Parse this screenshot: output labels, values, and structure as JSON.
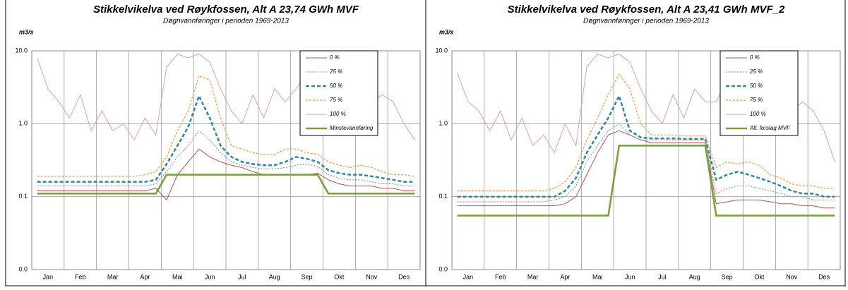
{
  "chart_data": [
    {
      "type": "line",
      "title": "Stikkelvikelva ved Røykfossen, Alt A 23,74 GWh MVF",
      "subtitle": "Døgnvannføringer i perioden 1969-2013",
      "y_label": "m3/s",
      "log_scale": true,
      "grid": true,
      "legend": "top-right",
      "ylim": [
        0.01,
        10
      ],
      "yticks": [
        {
          "value": 0.01,
          "label": "0.0"
        },
        {
          "value": 0.1,
          "label": "0.1"
        },
        {
          "value": 1,
          "label": "1.0"
        },
        {
          "value": 10,
          "label": "10.0"
        }
      ],
      "categories": [
        null,
        "Jan",
        null,
        null,
        "Feb",
        null,
        null,
        "Mar",
        null,
        null,
        "Apr",
        null,
        null,
        "Mai",
        null,
        null,
        "Jun",
        null,
        null,
        "Jul",
        null,
        null,
        "Aug",
        null,
        null,
        "Sep",
        null,
        null,
        "Okt",
        null,
        null,
        "Nov",
        null,
        null,
        "Des",
        null
      ],
      "series": [
        {
          "name": "0 %",
          "color": "#c0504d",
          "style": "thin",
          "values": [
            0.12,
            0.12,
            0.12,
            0.12,
            0.12,
            0.12,
            0.12,
            0.12,
            0.12,
            0.12,
            0.12,
            0.13,
            0.09,
            0.2,
            0.3,
            0.45,
            0.35,
            0.3,
            0.27,
            0.25,
            0.22,
            0.2,
            0.2,
            0.2,
            0.2,
            0.2,
            0.21,
            0.17,
            0.15,
            0.14,
            0.14,
            0.14,
            0.13,
            0.13,
            0.12,
            0.12
          ]
        },
        {
          "name": "25 %",
          "color": "#7f7fbf",
          "style": "dotted",
          "values": [
            0.14,
            0.14,
            0.14,
            0.14,
            0.14,
            0.14,
            0.14,
            0.14,
            0.14,
            0.14,
            0.14,
            0.15,
            0.22,
            0.35,
            0.5,
            0.8,
            0.6,
            0.4,
            0.3,
            0.27,
            0.25,
            0.24,
            0.24,
            0.25,
            0.27,
            0.28,
            0.26,
            0.2,
            0.18,
            0.17,
            0.17,
            0.16,
            0.15,
            0.15,
            0.14,
            0.14
          ]
        },
        {
          "name": "50 %",
          "color": "#31859c",
          "style": "thick-dashed",
          "values": [
            0.16,
            0.16,
            0.16,
            0.16,
            0.16,
            0.16,
            0.16,
            0.16,
            0.16,
            0.16,
            0.16,
            0.17,
            0.28,
            0.5,
            0.9,
            2.4,
            1.2,
            0.5,
            0.35,
            0.3,
            0.28,
            0.27,
            0.27,
            0.3,
            0.35,
            0.33,
            0.3,
            0.23,
            0.21,
            0.2,
            0.2,
            0.19,
            0.18,
            0.17,
            0.16,
            0.16
          ]
        },
        {
          "name": "75 %",
          "color": "#f79646",
          "style": "dashed",
          "values": [
            0.19,
            0.19,
            0.19,
            0.19,
            0.19,
            0.19,
            0.19,
            0.19,
            0.19,
            0.19,
            0.2,
            0.22,
            0.35,
            0.8,
            1.5,
            4.5,
            4.0,
            1.2,
            0.5,
            0.45,
            0.4,
            0.38,
            0.38,
            0.45,
            0.45,
            0.4,
            0.38,
            0.3,
            0.27,
            0.25,
            0.27,
            0.25,
            0.22,
            0.2,
            0.2,
            0.19
          ]
        },
        {
          "name": "100 %",
          "color": "#e6a09e",
          "style": "thin",
          "values": [
            8,
            3,
            2,
            1.2,
            2.5,
            0.8,
            1.5,
            0.8,
            1.0,
            0.6,
            1.2,
            0.7,
            6,
            9,
            8,
            9,
            7,
            3,
            1.5,
            1.0,
            2.5,
            1.2,
            3,
            2,
            3,
            5,
            2,
            2,
            1.5,
            1,
            1.2,
            2,
            2.5,
            2,
            1,
            0.6
          ]
        },
        {
          "name": "Minstevannføring",
          "color": "#77a033",
          "style": "thick",
          "values": [
            0.11,
            0.11,
            0.11,
            0.11,
            0.11,
            0.11,
            0.11,
            0.11,
            0.11,
            0.11,
            0.11,
            0.11,
            0.2,
            0.2,
            0.2,
            0.2,
            0.2,
            0.2,
            0.2,
            0.2,
            0.2,
            0.2,
            0.2,
            0.2,
            0.2,
            0.2,
            0.2,
            0.11,
            0.11,
            0.11,
            0.11,
            0.11,
            0.11,
            0.11,
            0.11,
            0.11
          ]
        }
      ]
    },
    {
      "type": "line",
      "title": "Stikkelvikelva ved Røykfossen, Alt A 23,41 GWh MVF_2",
      "subtitle": "Døgnvannføringer i perioden 1969-2013",
      "y_label": "m3/s",
      "log_scale": true,
      "grid": true,
      "legend": "top-right",
      "ylim": [
        0.01,
        10
      ],
      "yticks": [
        {
          "value": 0.01,
          "label": "0.0"
        },
        {
          "value": 0.1,
          "label": "0.1"
        },
        {
          "value": 1,
          "label": "1.0"
        },
        {
          "value": 10,
          "label": "10.0"
        }
      ],
      "categories": [
        null,
        "Jan",
        null,
        null,
        "Feb",
        null,
        null,
        "Mar",
        null,
        null,
        "Apr",
        null,
        null,
        "Mai",
        null,
        null,
        "Jun",
        null,
        null,
        "Jul",
        null,
        null,
        "Aug",
        null,
        null,
        "Sep",
        null,
        null,
        "Okt",
        null,
        null,
        "Nov",
        null,
        null,
        "Des",
        null
      ],
      "series": [
        {
          "name": "0 %",
          "color": "#c0504d",
          "style": "thin",
          "values": [
            0.075,
            0.075,
            0.075,
            0.075,
            0.075,
            0.075,
            0.075,
            0.075,
            0.075,
            0.075,
            0.08,
            0.1,
            0.2,
            0.4,
            0.7,
            0.8,
            0.7,
            0.6,
            0.55,
            0.55,
            0.55,
            0.55,
            0.55,
            0.55,
            0.08,
            0.085,
            0.09,
            0.09,
            0.09,
            0.085,
            0.08,
            0.08,
            0.075,
            0.075,
            0.07,
            0.07
          ]
        },
        {
          "name": "25 %",
          "color": "#7f7fbf",
          "style": "dotted",
          "values": [
            0.085,
            0.085,
            0.085,
            0.085,
            0.085,
            0.085,
            0.085,
            0.085,
            0.085,
            0.09,
            0.1,
            0.14,
            0.3,
            0.5,
            0.8,
            1.0,
            0.7,
            0.6,
            0.6,
            0.6,
            0.6,
            0.6,
            0.6,
            0.6,
            0.11,
            0.13,
            0.14,
            0.14,
            0.13,
            0.12,
            0.11,
            0.1,
            0.1,
            0.09,
            0.09,
            0.09
          ]
        },
        {
          "name": "50 %",
          "color": "#31859c",
          "style": "thick-dashed",
          "values": [
            0.1,
            0.1,
            0.1,
            0.1,
            0.1,
            0.1,
            0.1,
            0.1,
            0.1,
            0.1,
            0.12,
            0.18,
            0.4,
            0.7,
            1.2,
            2.4,
            0.8,
            0.65,
            0.63,
            0.63,
            0.63,
            0.62,
            0.62,
            0.62,
            0.17,
            0.2,
            0.22,
            0.2,
            0.18,
            0.16,
            0.14,
            0.12,
            0.11,
            0.11,
            0.1,
            0.1
          ]
        },
        {
          "name": "75 %",
          "color": "#f79646",
          "style": "dashed",
          "values": [
            0.12,
            0.12,
            0.12,
            0.12,
            0.12,
            0.12,
            0.12,
            0.12,
            0.12,
            0.13,
            0.16,
            0.25,
            0.6,
            1.2,
            2.5,
            4.8,
            3,
            1.0,
            0.7,
            0.7,
            0.7,
            0.68,
            0.68,
            0.68,
            0.25,
            0.3,
            0.28,
            0.3,
            0.27,
            0.2,
            0.18,
            0.15,
            0.14,
            0.14,
            0.13,
            0.13
          ]
        },
        {
          "name": "100 %",
          "color": "#e6a09e",
          "style": "thin",
          "values": [
            5,
            2,
            1.5,
            0.8,
            1.5,
            0.6,
            1.2,
            0.5,
            0.7,
            0.4,
            1.0,
            0.5,
            6,
            9,
            8,
            9,
            7,
            3,
            1.5,
            1.0,
            2.5,
            1.2,
            3,
            2,
            2,
            4,
            1.5,
            1.5,
            1.2,
            0.8,
            1,
            1.5,
            2,
            1.5,
            0.8,
            0.3
          ]
        },
        {
          "name": "Alt. forslag MVF",
          "color": "#77a033",
          "style": "thick",
          "values": [
            0.055,
            0.055,
            0.055,
            0.055,
            0.055,
            0.055,
            0.055,
            0.055,
            0.055,
            0.055,
            0.055,
            0.055,
            0.055,
            0.055,
            0.055,
            0.5,
            0.5,
            0.5,
            0.5,
            0.5,
            0.5,
            0.5,
            0.5,
            0.5,
            0.055,
            0.055,
            0.055,
            0.055,
            0.055,
            0.055,
            0.055,
            0.055,
            0.055,
            0.055,
            0.055,
            0.055
          ]
        }
      ]
    }
  ]
}
